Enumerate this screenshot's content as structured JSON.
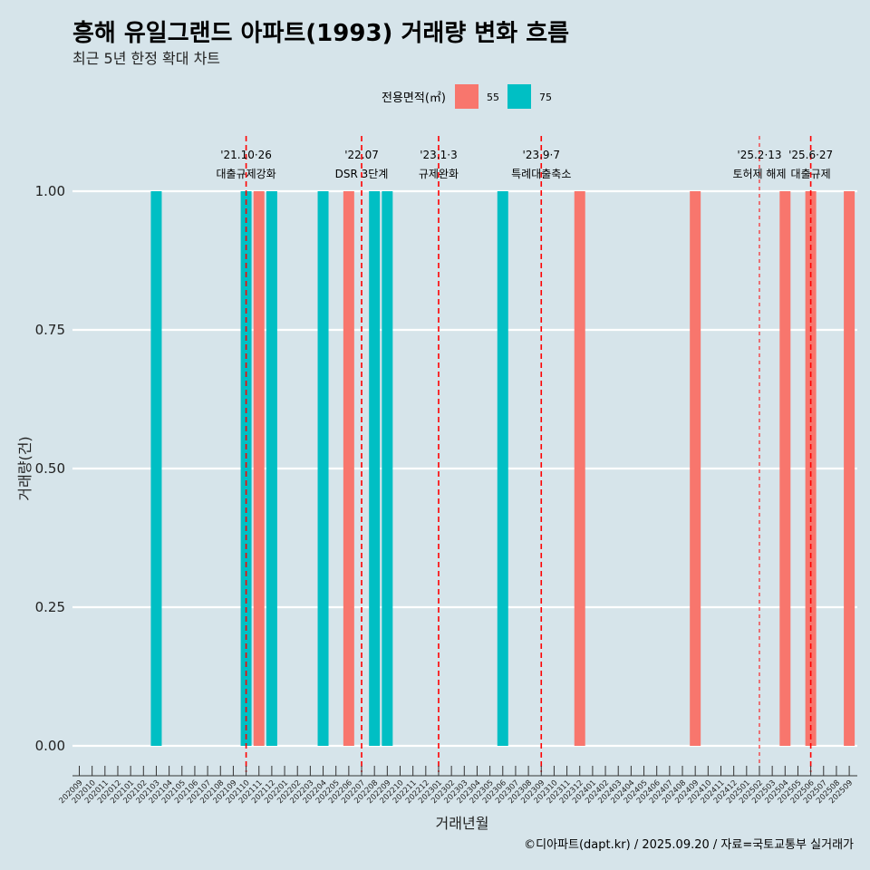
{
  "chart_data": {
    "type": "bar",
    "title": "흥해 유일그랜드 아파트(1993) 거래량 변화 흐름",
    "subtitle": "최근 5년 한정 확대 차트",
    "xlabel": "거래년월",
    "ylabel": "거래량(건)",
    "ylim": [
      0,
      1
    ],
    "yticks": [
      "0.00",
      "0.25",
      "0.50",
      "0.75",
      "1.00"
    ],
    "ytick_values": [
      0,
      0.25,
      0.5,
      0.75,
      1.0
    ],
    "legend": {
      "title": "전용면적(㎡)",
      "placement": "top"
    },
    "grid": true,
    "categories": [
      "202009",
      "202010",
      "202011",
      "202012",
      "202101",
      "202102",
      "202103",
      "202104",
      "202105",
      "202106",
      "202107",
      "202108",
      "202109",
      "202110",
      "202111",
      "202112",
      "202201",
      "202202",
      "202203",
      "202204",
      "202205",
      "202206",
      "202207",
      "202208",
      "202209",
      "202210",
      "202211",
      "202212",
      "202301",
      "202302",
      "202303",
      "202304",
      "202305",
      "202306",
      "202307",
      "202308",
      "202309",
      "202310",
      "202311",
      "202312",
      "202401",
      "202402",
      "202403",
      "202404",
      "202405",
      "202406",
      "202407",
      "202408",
      "202409",
      "202410",
      "202411",
      "202412",
      "202501",
      "202502",
      "202503",
      "202504",
      "202505",
      "202506",
      "202507",
      "202508",
      "202509"
    ],
    "series": [
      {
        "name": "55",
        "color": "#f8766d",
        "points": [
          {
            "x": "202111",
            "y": 1
          },
          {
            "x": "202206",
            "y": 1
          },
          {
            "x": "202312",
            "y": 1
          },
          {
            "x": "202409",
            "y": 1
          },
          {
            "x": "202504",
            "y": 1
          },
          {
            "x": "202506",
            "y": 1
          },
          {
            "x": "202509",
            "y": 1
          }
        ]
      },
      {
        "name": "75",
        "color": "#00bfc4",
        "points": [
          {
            "x": "202103",
            "y": 1
          },
          {
            "x": "202110",
            "y": 1
          },
          {
            "x": "202112",
            "y": 1
          },
          {
            "x": "202204",
            "y": 1
          },
          {
            "x": "202208",
            "y": 1
          },
          {
            "x": "202209",
            "y": 1
          },
          {
            "x": "202306",
            "y": 1
          }
        ]
      }
    ],
    "annotations": [
      {
        "x": "202110",
        "line1": "'21.10·26",
        "line2": "대출규제강화",
        "dashed": "dense"
      },
      {
        "x": "202207",
        "line1": "'22.07",
        "line2": "DSR 3단계",
        "dashed": "dense"
      },
      {
        "x": "202301",
        "line1": "'23.1·3",
        "line2": "규제완화",
        "dashed": "dense"
      },
      {
        "x": "202309",
        "line1": "'23.9·7",
        "line2": "특례대출축소",
        "dashed": "dense"
      },
      {
        "x": "202502",
        "line1": "'25.2·13",
        "line2": "토허제 해제",
        "dashed": "sparse"
      },
      {
        "x": "202506",
        "line1": "'25.6·27",
        "line2": "대출규제",
        "dashed": "dense"
      }
    ],
    "caption": "©디아파트(dapt.kr) / 2025.09.20 / 자료=국토교통부 실거래가"
  }
}
